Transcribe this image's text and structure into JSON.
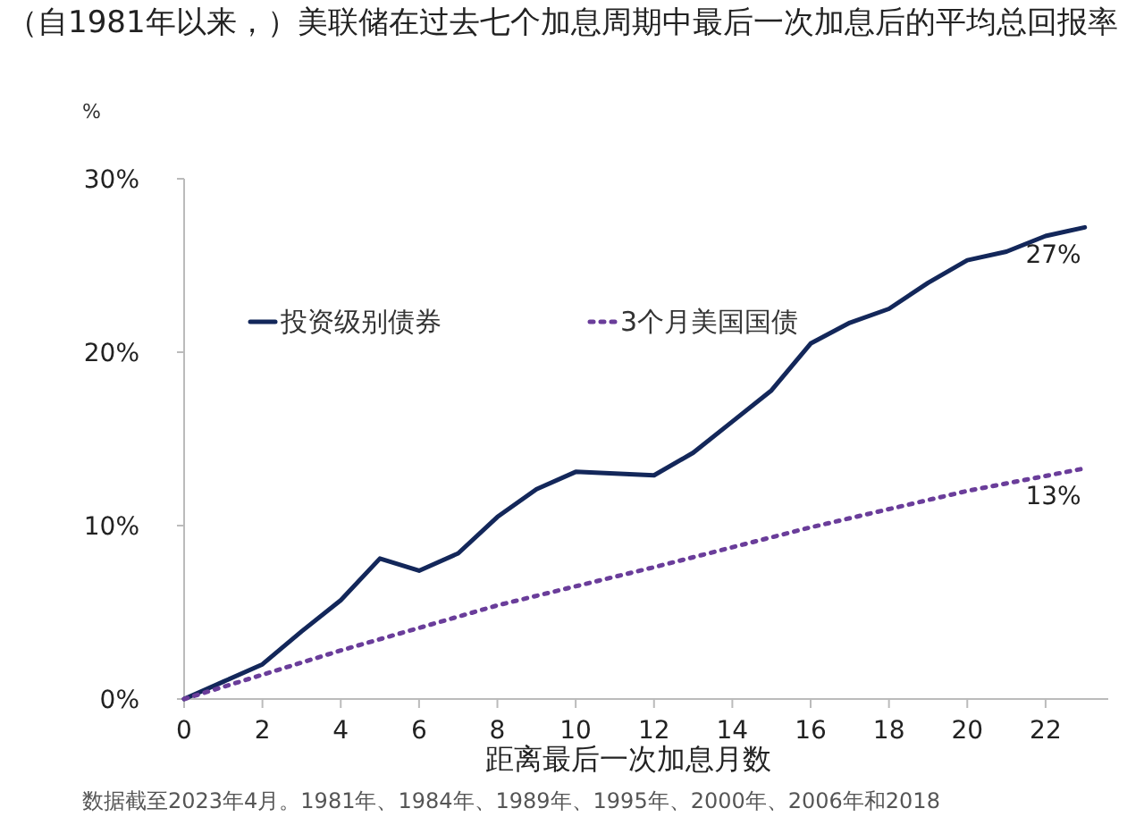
{
  "chart_data": {
    "type": "line",
    "title": "（自1981年以来，）美联储在过去七个加息周期中最后一次加息后的平均总回报率",
    "ylabel": "%",
    "xlabel": "距离最后一次加息月数",
    "annotations": [
      "数据截至2023年4月。1981年、1984年、1989年、1995年、2000年、2006年和2018"
    ],
    "xlim": [
      0,
      23.6
    ],
    "xticks": [
      0,
      2,
      4,
      6,
      8,
      10,
      12,
      14,
      16,
      18,
      20,
      22
    ],
    "ylim": [
      0,
      30
    ],
    "yticks": [
      {
        "value": 0,
        "label": "0%"
      },
      {
        "value": 10,
        "label": "10%"
      },
      {
        "value": 20,
        "label": "20%"
      },
      {
        "value": 30,
        "label": "30%"
      }
    ],
    "grid": false,
    "legend": "left",
    "series": [
      {
        "name": "投资级别债券",
        "color": "#13275a",
        "line_style": "solid",
        "x": [
          0,
          1,
          2,
          3,
          4,
          5,
          6,
          7,
          8,
          9,
          10,
          11,
          12,
          13,
          14,
          15,
          16,
          17,
          18,
          19,
          20,
          21,
          22,
          23
        ],
        "values": [
          0,
          1.0,
          2.0,
          3.9,
          5.7,
          8.1,
          7.4,
          8.4,
          10.5,
          12.1,
          13.1,
          13.0,
          12.9,
          14.2,
          16.0,
          17.8,
          20.5,
          21.7,
          22.5,
          24.0,
          25.3,
          25.8,
          26.7,
          27.2
        ],
        "value_labels": [
          null,
          null,
          null,
          null,
          null,
          null,
          null,
          null,
          null,
          null,
          null,
          null,
          null,
          null,
          null,
          null,
          null,
          null,
          null,
          null,
          null,
          null,
          null,
          "27%"
        ]
      },
      {
        "name": "3个月美国国债",
        "color": "#6a3d9a",
        "line_style": "dotted",
        "x": [
          0,
          4,
          8,
          12,
          16,
          20,
          23
        ],
        "values": [
          0,
          2.8,
          5.4,
          7.6,
          9.9,
          12.0,
          13.3
        ],
        "value_labels": [
          null,
          null,
          null,
          null,
          null,
          null,
          "13%"
        ]
      }
    ]
  }
}
